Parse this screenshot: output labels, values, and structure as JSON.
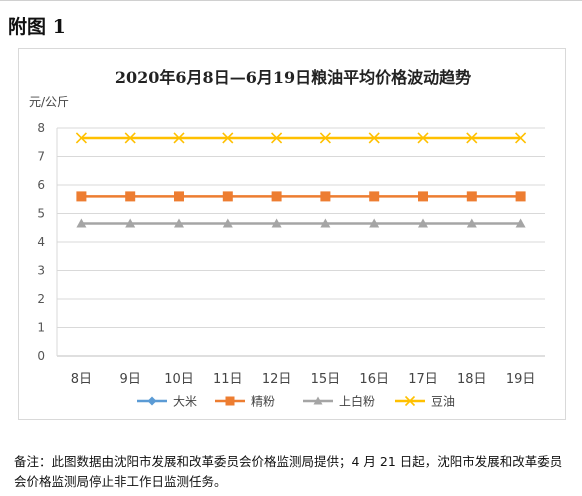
{
  "heading": "附图 1",
  "chart_data": {
    "type": "line",
    "title": "2020年6月8日—6月19日粮油平均价格波动趋势",
    "ylabel": "元/公斤",
    "xlabel": "",
    "categories": [
      "8日",
      "9日",
      "10日",
      "11日",
      "12日",
      "15日",
      "16日",
      "17日",
      "18日",
      "19日"
    ],
    "y_ticks": [
      "0",
      "1",
      "2",
      "3",
      "4",
      "5",
      "6",
      "7",
      "8"
    ],
    "ylim": [
      0,
      8
    ],
    "grid": true,
    "legend_position": "bottom",
    "series": [
      {
        "name": "大米",
        "color": "#5b9bd5",
        "marker": "diamond",
        "values": [
          null,
          null,
          null,
          null,
          null,
          null,
          null,
          null,
          null,
          null
        ]
      },
      {
        "name": "精粉",
        "color": "#ed7d31",
        "marker": "square",
        "values": [
          5.6,
          5.6,
          5.6,
          5.6,
          5.6,
          5.6,
          5.6,
          5.6,
          5.6,
          5.6
        ]
      },
      {
        "name": "上白粉",
        "color": "#a5a5a5",
        "marker": "triangle",
        "values": [
          4.65,
          4.65,
          4.65,
          4.65,
          4.65,
          4.65,
          4.65,
          4.65,
          4.65,
          4.65
        ]
      },
      {
        "name": "豆油",
        "color": "#ffc000",
        "marker": "cross",
        "values": [
          7.65,
          7.65,
          7.65,
          7.65,
          7.65,
          7.65,
          7.65,
          7.65,
          7.65,
          7.65
        ]
      }
    ]
  },
  "note": "备注：此图数据由沈阳市发展和改革委员会价格监测局提供；4 月 21 日起，沈阳市发展和改革委员会价格监测局停止非工作日监测任务。"
}
